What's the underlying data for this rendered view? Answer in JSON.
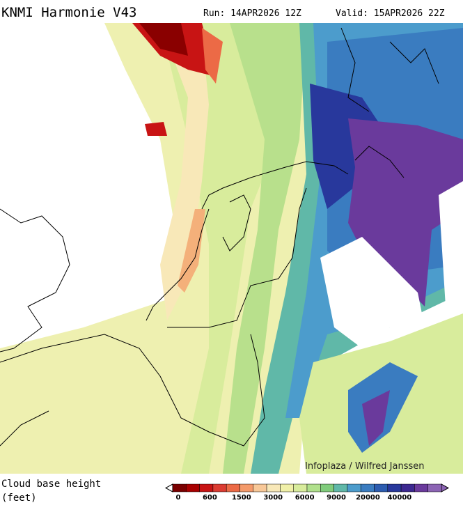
{
  "header": {
    "title": "KNMI Harmonie V43",
    "run": "Run: 14APR2026 12Z",
    "valid": "Valid: 15APR2026 22Z"
  },
  "map": {
    "credit": "Infoplaza / Wilfred Janssen"
  },
  "legend": {
    "label_line1": "Cloud base height",
    "label_line2": "(feet)",
    "colors": [
      "#7a0000",
      "#a80000",
      "#c81414",
      "#dc3c32",
      "#ec6a46",
      "#f49a6a",
      "#f8c898",
      "#f8e8b8",
      "#f0f0a8",
      "#d8ec9c",
      "#b0e08c",
      "#80cc7c",
      "#60b8a8",
      "#4c9ccc",
      "#3a7cc0",
      "#2c5cb0",
      "#28389c",
      "#3c2890",
      "#6a3a9c",
      "#8c64b4"
    ],
    "ticks": [
      "0",
      "600",
      "1500",
      "3000",
      "6000",
      "9000",
      "20000",
      "40000"
    ]
  }
}
